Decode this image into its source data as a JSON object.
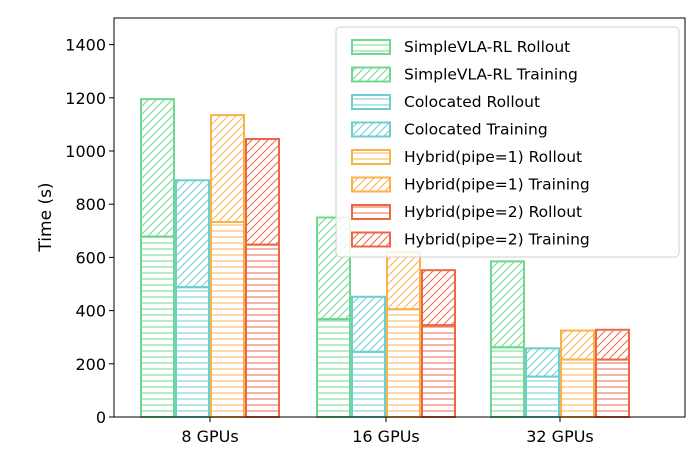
{
  "chart_data": {
    "type": "bar",
    "stacked": true,
    "title": "",
    "xlabel": "",
    "ylabel": "Time (s)",
    "ylim": [
      0,
      1500
    ],
    "yticks": [
      0,
      200,
      400,
      600,
      800,
      1000,
      1200,
      1400
    ],
    "categories": [
      "8 GPUs",
      "16 GPUs",
      "32 GPUs"
    ],
    "legend_position": "top-right",
    "series": [
      {
        "name": "SimpleVLA-RL",
        "color": "#6fd88f",
        "rollout": [
          678,
          368,
          262
        ],
        "total": [
          1195,
          750,
          585
        ]
      },
      {
        "name": "Colocated",
        "color": "#6ccfce",
        "rollout": [
          488,
          245,
          152
        ],
        "total": [
          890,
          452,
          258
        ]
      },
      {
        "name": "Hybrid(pipe=1)",
        "color": "#f8b24c",
        "rollout": [
          733,
          405,
          216
        ],
        "total": [
          1135,
          620,
          325
        ]
      },
      {
        "name": "Hybrid(pipe=2)",
        "color": "#ec6747",
        "rollout": [
          648,
          345,
          216
        ],
        "total": [
          1045,
          552,
          328
        ]
      }
    ],
    "legend": [
      {
        "label": "SimpleVLA-RL Rollout",
        "color": "#6fd88f",
        "pattern": "horizontal"
      },
      {
        "label": "SimpleVLA-RL Training",
        "color": "#6fd88f",
        "pattern": "diagonal"
      },
      {
        "label": "Colocated Rollout",
        "color": "#6ccfce",
        "pattern": "horizontal"
      },
      {
        "label": "Colocated Training",
        "color": "#6ccfce",
        "pattern": "diagonal"
      },
      {
        "label": "Hybrid(pipe=1) Rollout",
        "color": "#f8b24c",
        "pattern": "horizontal"
      },
      {
        "label": "Hybrid(pipe=1) Training",
        "color": "#f8b24c",
        "pattern": "diagonal"
      },
      {
        "label": "Hybrid(pipe=2) Rollout",
        "color": "#ec6747",
        "pattern": "horizontal"
      },
      {
        "label": "Hybrid(pipe=2) Training",
        "color": "#ec6747",
        "pattern": "diagonal"
      }
    ]
  }
}
